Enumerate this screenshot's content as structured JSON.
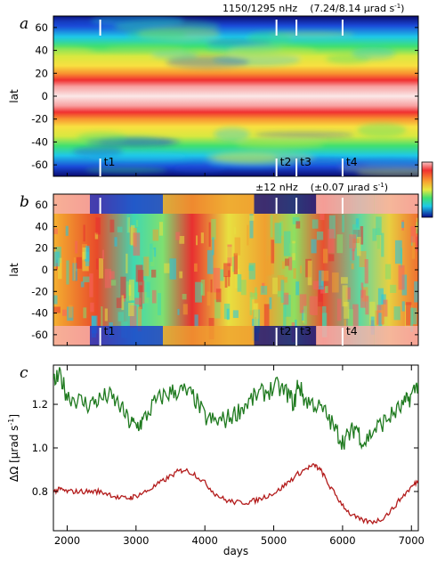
{
  "chart_data": [
    {
      "panel": "a",
      "type": "heatmap",
      "annotation_main": "1150/1295 nHz",
      "annotation_paren": "(7.24/8.14 μrad s",
      "annotation_sup": "-1",
      "annotation_close": ")",
      "ylabel": "lat",
      "ylim": [
        -70,
        70
      ],
      "yticks": [
        -60,
        -40,
        -20,
        0,
        20,
        40,
        60
      ],
      "xlim": [
        1800,
        7100
      ],
      "markers": [
        {
          "label": "t1",
          "day": 2480
        },
        {
          "label": "t2",
          "day": 5040
        },
        {
          "label": "t3",
          "day": 5330
        },
        {
          "label": "t4",
          "day": 6000
        }
      ]
    },
    {
      "panel": "b",
      "type": "heatmap",
      "annotation_main": "±12 nHz",
      "annotation_paren": "(±0.07 μrad s",
      "annotation_sup": "-1",
      "annotation_close": ")",
      "ylabel": "lat",
      "ylim": [
        -70,
        70
      ],
      "yticks": [
        -60,
        -40,
        -20,
        0,
        20,
        40,
        60
      ],
      "xlim": [
        1800,
        7100
      ],
      "markers": [
        {
          "label": "t1",
          "day": 2480
        },
        {
          "label": "t2",
          "day": 5040
        },
        {
          "label": "t3",
          "day": 5330
        },
        {
          "label": "t4",
          "day": 6000
        }
      ]
    },
    {
      "panel": "c",
      "type": "line",
      "ylabel_main": "ΔΩ [μrad s",
      "ylabel_sup": "-1",
      "ylabel_close": "]",
      "xlabel": "days",
      "xlim": [
        1800,
        7100
      ],
      "ylim": [
        0.62,
        1.38
      ],
      "xticks": [
        2000,
        3000,
        4000,
        5000,
        6000,
        7000
      ],
      "yticks": [
        0.8,
        1.0,
        1.2
      ],
      "series": [
        {
          "color": "#1f7a1f",
          "x": [
            1800,
            1900,
            2000,
            2150,
            2300,
            2450,
            2600,
            2750,
            2900,
            3000,
            3100,
            3250,
            3400,
            3550,
            3700,
            3850,
            4000,
            4150,
            4300,
            4450,
            4600,
            4750,
            4900,
            5050,
            5200,
            5300,
            5350,
            5450,
            5600,
            5750,
            5900,
            6000,
            6100,
            6200,
            6300,
            6450,
            6600,
            6750,
            6900,
            7000,
            7100
          ],
          "y": [
            1.3,
            1.33,
            1.24,
            1.22,
            1.2,
            1.22,
            1.24,
            1.2,
            1.12,
            1.1,
            1.12,
            1.2,
            1.24,
            1.26,
            1.26,
            1.23,
            1.14,
            1.12,
            1.13,
            1.16,
            1.2,
            1.24,
            1.26,
            1.28,
            1.25,
            1.2,
            1.3,
            1.22,
            1.2,
            1.16,
            1.08,
            1.03,
            1.06,
            1.1,
            1.02,
            1.08,
            1.12,
            1.16,
            1.2,
            1.24,
            1.3
          ]
        },
        {
          "color": "#b31b1b",
          "x": [
            1800,
            1900,
            2000,
            2150,
            2300,
            2450,
            2600,
            2750,
            2900,
            3000,
            3150,
            3300,
            3450,
            3600,
            3700,
            3850,
            4000,
            4150,
            4300,
            4450,
            4600,
            4750,
            4900,
            5050,
            5200,
            5350,
            5500,
            5600,
            5700,
            5800,
            5950,
            6100,
            6250,
            6400,
            6550,
            6700,
            6850,
            7000,
            7100
          ],
          "y": [
            0.8,
            0.81,
            0.8,
            0.8,
            0.8,
            0.8,
            0.79,
            0.77,
            0.77,
            0.78,
            0.8,
            0.83,
            0.86,
            0.89,
            0.9,
            0.88,
            0.84,
            0.79,
            0.76,
            0.75,
            0.75,
            0.76,
            0.78,
            0.8,
            0.84,
            0.88,
            0.91,
            0.92,
            0.89,
            0.83,
            0.76,
            0.7,
            0.67,
            0.66,
            0.67,
            0.71,
            0.77,
            0.82,
            0.85
          ]
        }
      ]
    }
  ]
}
